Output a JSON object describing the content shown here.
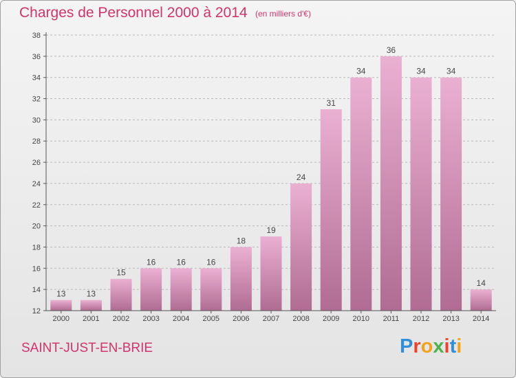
{
  "title": "Charges de Personnel 2000 à 2014",
  "subtitle": "(en milliers d'€)",
  "commune": "SAINT-JUST-EN-BRIE",
  "logo": {
    "letters": [
      "P",
      "r",
      "o",
      "x",
      "i",
      "t",
      "i"
    ],
    "colors": [
      "#2f8fd8",
      "#e8442e",
      "#f2a21b",
      "#4db34d",
      "#e8442e",
      "#2f8fd8",
      "#f2a21b"
    ]
  },
  "colors": {
    "bar_light": "#eab0d2",
    "bar_dark": "#b06c92",
    "title": "#d1336b",
    "axis": "#555555",
    "grid": "#b8b8b8"
  },
  "chart_data": {
    "type": "bar",
    "categories": [
      "2000",
      "2001",
      "2002",
      "2003",
      "2004",
      "2005",
      "2006",
      "2007",
      "2008",
      "2009",
      "2010",
      "2011",
      "2012",
      "2013",
      "2014"
    ],
    "values": [
      13,
      13,
      15,
      16,
      16,
      16,
      18,
      19,
      24,
      31,
      34,
      36,
      34,
      34,
      14
    ],
    "title": "Charges de Personnel 2000 à 2014",
    "subtitle": "(en milliers d'€)",
    "ylim": [
      12,
      38
    ],
    "yticks": [
      12,
      14,
      16,
      18,
      20,
      22,
      24,
      26,
      28,
      30,
      32,
      34,
      36,
      38
    ],
    "grid": "horizontal dashed",
    "legend": "none"
  }
}
